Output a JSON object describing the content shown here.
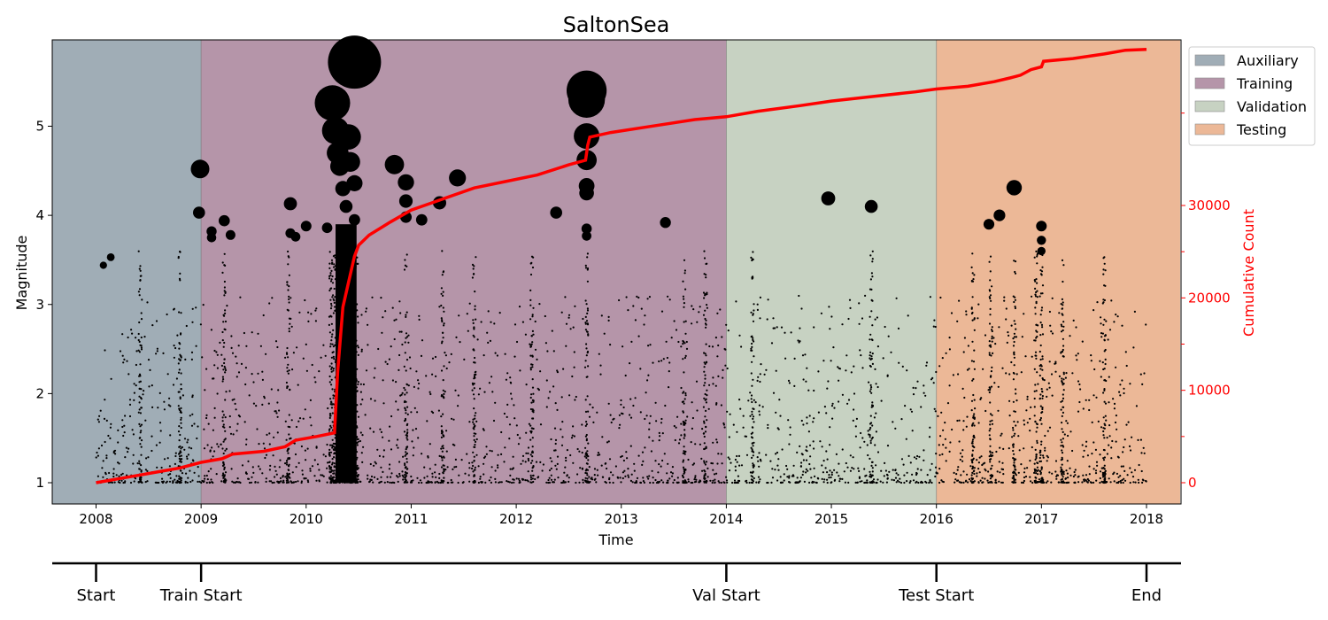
{
  "chart_data": {
    "type": "scatter",
    "title": "SaltonSea",
    "xlabel": "Time",
    "ylabel": "Magnitude",
    "y2label": "Cumulative Count",
    "xlim": [
      2007.58,
      2018.32
    ],
    "ylim": [
      0.77,
      5.97
    ],
    "y2lim": [
      -2300,
      48000
    ],
    "x_ticks": [
      "2008",
      "2009",
      "2010",
      "2011",
      "2012",
      "2013",
      "2014",
      "2015",
      "2016",
      "2017",
      "2018"
    ],
    "y_ticks": [
      "1",
      "2",
      "3",
      "4",
      "5"
    ],
    "y2_ticks": [
      "0",
      "10000",
      "20000",
      "30000"
    ],
    "legend_position": "outside-top-right",
    "grid": false,
    "spans": [
      {
        "name": "Auxiliary",
        "start": 2008.0,
        "end": 2009.0,
        "color": "#a0adb6"
      },
      {
        "name": "Training",
        "start": 2009.0,
        "end": 2014.0,
        "color": "#b595a9"
      },
      {
        "name": "Validation",
        "start": 2014.0,
        "end": 2016.0,
        "color": "#c7d2c2"
      },
      {
        "name": "Testing",
        "start": 2016.0,
        "end": 2018.32,
        "color": "#ecb897"
      }
    ],
    "cumulative_series": {
      "name": "Cumulative Count",
      "color": "#ff0000",
      "points": [
        [
          2008.0,
          0
        ],
        [
          2008.2,
          400
        ],
        [
          2008.4,
          800
        ],
        [
          2008.6,
          1200
        ],
        [
          2008.8,
          1600
        ],
        [
          2009.0,
          2200
        ],
        [
          2009.2,
          2600
        ],
        [
          2009.3,
          3100
        ],
        [
          2009.6,
          3400
        ],
        [
          2009.8,
          3900
        ],
        [
          2009.9,
          4600
        ],
        [
          2010.1,
          5000
        ],
        [
          2010.27,
          5400
        ],
        [
          2010.3,
          12000
        ],
        [
          2010.35,
          19000
        ],
        [
          2010.42,
          22500
        ],
        [
          2010.46,
          24500
        ],
        [
          2010.5,
          25700
        ],
        [
          2010.6,
          26800
        ],
        [
          2010.8,
          28200
        ],
        [
          2011.0,
          29500
        ],
        [
          2011.2,
          30300
        ],
        [
          2011.4,
          31100
        ],
        [
          2011.6,
          31900
        ],
        [
          2011.9,
          32600
        ],
        [
          2012.2,
          33300
        ],
        [
          2012.5,
          34400
        ],
        [
          2012.66,
          34900
        ],
        [
          2012.68,
          36500
        ],
        [
          2012.7,
          37400
        ],
        [
          2012.9,
          37900
        ],
        [
          2013.3,
          38600
        ],
        [
          2013.7,
          39300
        ],
        [
          2014.0,
          39600
        ],
        [
          2014.3,
          40200
        ],
        [
          2014.7,
          40800
        ],
        [
          2015.0,
          41300
        ],
        [
          2015.4,
          41800
        ],
        [
          2015.8,
          42300
        ],
        [
          2016.0,
          42600
        ],
        [
          2016.3,
          42900
        ],
        [
          2016.55,
          43400
        ],
        [
          2016.7,
          43800
        ],
        [
          2016.8,
          44100
        ],
        [
          2016.9,
          44700
        ],
        [
          2017.0,
          45000
        ],
        [
          2017.02,
          45600
        ],
        [
          2017.3,
          45900
        ],
        [
          2017.6,
          46400
        ],
        [
          2017.8,
          46800
        ],
        [
          2018.0,
          46900
        ]
      ]
    },
    "large_events": [
      [
        2008.07,
        3.44
      ],
      [
        2008.14,
        3.53
      ],
      [
        2008.98,
        4.03
      ],
      [
        2008.99,
        4.52
      ],
      [
        2009.1,
        3.82
      ],
      [
        2009.1,
        3.75
      ],
      [
        2009.22,
        3.94
      ],
      [
        2009.28,
        3.78
      ],
      [
        2009.85,
        4.13
      ],
      [
        2009.85,
        3.8
      ],
      [
        2009.9,
        3.76
      ],
      [
        2010.0,
        3.88
      ],
      [
        2010.2,
        3.86
      ],
      [
        2010.25,
        5.26
      ],
      [
        2010.28,
        4.95
      ],
      [
        2010.3,
        4.7
      ],
      [
        2010.32,
        4.55
      ],
      [
        2010.35,
        4.3
      ],
      [
        2010.38,
        4.1
      ],
      [
        2010.4,
        4.88
      ],
      [
        2010.42,
        4.6
      ],
      [
        2010.46,
        5.72
      ],
      [
        2010.46,
        4.36
      ],
      [
        2010.46,
        3.95
      ],
      [
        2010.84,
        4.57
      ],
      [
        2010.95,
        4.37
      ],
      [
        2010.95,
        4.16
      ],
      [
        2010.95,
        3.98
      ],
      [
        2011.1,
        3.95
      ],
      [
        2011.27,
        4.14
      ],
      [
        2011.44,
        4.42
      ],
      [
        2012.38,
        4.03
      ],
      [
        2012.67,
        5.4
      ],
      [
        2012.67,
        5.3
      ],
      [
        2012.67,
        4.89
      ],
      [
        2012.67,
        4.62
      ],
      [
        2012.67,
        4.33
      ],
      [
        2012.67,
        4.25
      ],
      [
        2012.67,
        3.85
      ],
      [
        2012.67,
        3.77
      ],
      [
        2013.42,
        3.92
      ],
      [
        2014.97,
        4.19
      ],
      [
        2015.38,
        4.1
      ],
      [
        2016.5,
        3.9
      ],
      [
        2016.6,
        4.0
      ],
      [
        2016.74,
        4.31
      ],
      [
        2017.0,
        3.88
      ],
      [
        2017.0,
        3.72
      ],
      [
        2017.0,
        3.6
      ]
    ],
    "annotations": {
      "timeline": [
        {
          "label": "Start",
          "x": 2008.0
        },
        {
          "label": "Train Start",
          "x": 2009.0
        },
        {
          "label": "Val Start",
          "x": 2014.0
        },
        {
          "label": "Test Start",
          "x": 2016.0
        },
        {
          "label": "End",
          "x": 2018.0
        }
      ]
    }
  }
}
